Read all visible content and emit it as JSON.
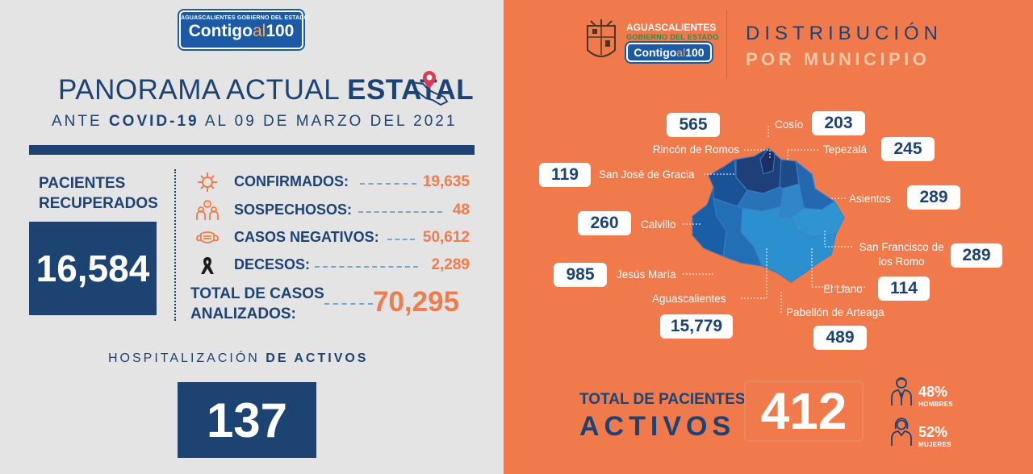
{
  "left": {
    "logo": {
      "top_text": "AGUASCALIENTES GOBIERNO DEL ESTADO",
      "word1": "Contigo",
      "word2": "al",
      "word3": "100"
    },
    "title": {
      "part1": "PANORAMA ACTUAL ",
      "part2": "ESTATAL"
    },
    "subtitle": {
      "part1": "ANTE ",
      "part2": "COVID-19",
      "part3": " AL 09 DE MARZO DEL 2021"
    },
    "recovered": {
      "label_line1": "PACIENTES",
      "label_line2": "RECUPERADOS",
      "value": "16,584"
    },
    "stats": [
      {
        "icon": "virus-icon",
        "label": "CONFIRMADOS:",
        "value": "19,635"
      },
      {
        "icon": "suspect-people-icon",
        "label": "SOSPECHOSOS:",
        "value": "48"
      },
      {
        "icon": "face-mask-icon",
        "label": "CASOS NEGATIVOS:",
        "value": "50,612"
      },
      {
        "icon": "mourning-ribbon-icon",
        "label": "DECESOS:",
        "value": "2,289"
      }
    ],
    "total": {
      "label_line1": "TOTAL DE CASOS",
      "label_line2": "ANALIZADOS:",
      "value": "70,295"
    },
    "hospital": {
      "label_part1": "HOSPITALIZACIÓN ",
      "label_part2": "DE ACTIVOS",
      "value": "137"
    }
  },
  "right": {
    "logo": {
      "state": "AGUASCALIENTES",
      "sub": "GOBIERNO DEL ESTADO",
      "word1": "Contigo",
      "word2": "al",
      "word3": "100"
    },
    "heading1": "DISTRIBUCIÓN",
    "heading2": "POR MUNICIPIO",
    "municipalities": [
      {
        "name": "Rincón de Romos",
        "value": "565"
      },
      {
        "name": "Cosío",
        "value": "203"
      },
      {
        "name": "Tepezalá",
        "value": "245"
      },
      {
        "name": "San José de Gracia",
        "value": "119"
      },
      {
        "name": "Asientos",
        "value": "289"
      },
      {
        "name": "Calvillo",
        "value": "260"
      },
      {
        "name": "San Francisco de los Romo",
        "value": "289"
      },
      {
        "name": "Jesús María",
        "value": "985"
      },
      {
        "name": "El Llano",
        "value": "114"
      },
      {
        "name": "Aguascalientes",
        "value": "15,779"
      },
      {
        "name": "Pabellón de Arteaga",
        "value": "489"
      }
    ],
    "active": {
      "label_line1": "TOTAL DE PACIENTES",
      "label_line2": "ACTIVOS",
      "value": "412"
    },
    "gender": {
      "men_pct": "48%",
      "men_label": "HOMBRES",
      "women_pct": "52%",
      "women_label": "MUJERES"
    }
  },
  "colors": {
    "navy": "#1d4373",
    "orange": "#f07a4b",
    "grey": "#e4e4e4",
    "map_dark": "#1f3f7a",
    "map_mid": "#1a5ea8",
    "map_light": "#2b8fd0"
  }
}
